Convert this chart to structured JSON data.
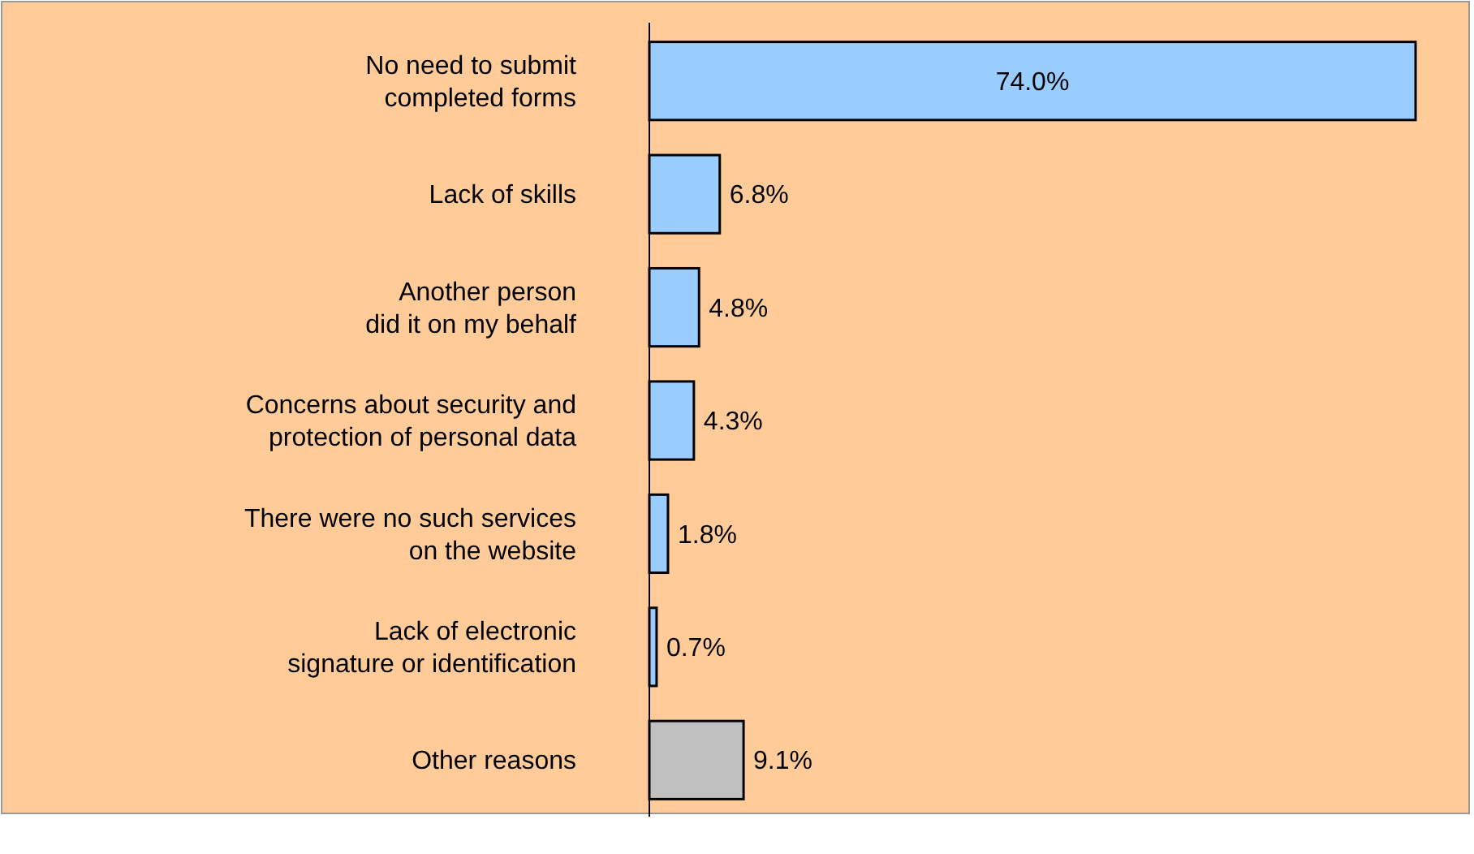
{
  "chart_data": {
    "type": "bar",
    "orientation": "horizontal",
    "categories": [
      "No need to submit\ncompleted forms",
      "Lack of skills",
      "Another person\ndid it on my behalf",
      "Concerns about security and\nprotection of personal data",
      "There were no such services\non the website",
      "Lack of electronic\nsignature or identification",
      "Other reasons"
    ],
    "values": [
      74.0,
      6.8,
      4.8,
      4.3,
      1.8,
      0.7,
      9.1
    ],
    "value_labels": [
      "74.0%",
      "6.8%",
      "4.8%",
      "4.3%",
      "1.8%",
      "0.7%",
      "9.1%"
    ],
    "colors": [
      "#99ccff",
      "#99ccff",
      "#99ccff",
      "#99ccff",
      "#99ccff",
      "#99ccff",
      "#c0c0c0"
    ],
    "xlim": [
      0,
      74.0
    ]
  }
}
